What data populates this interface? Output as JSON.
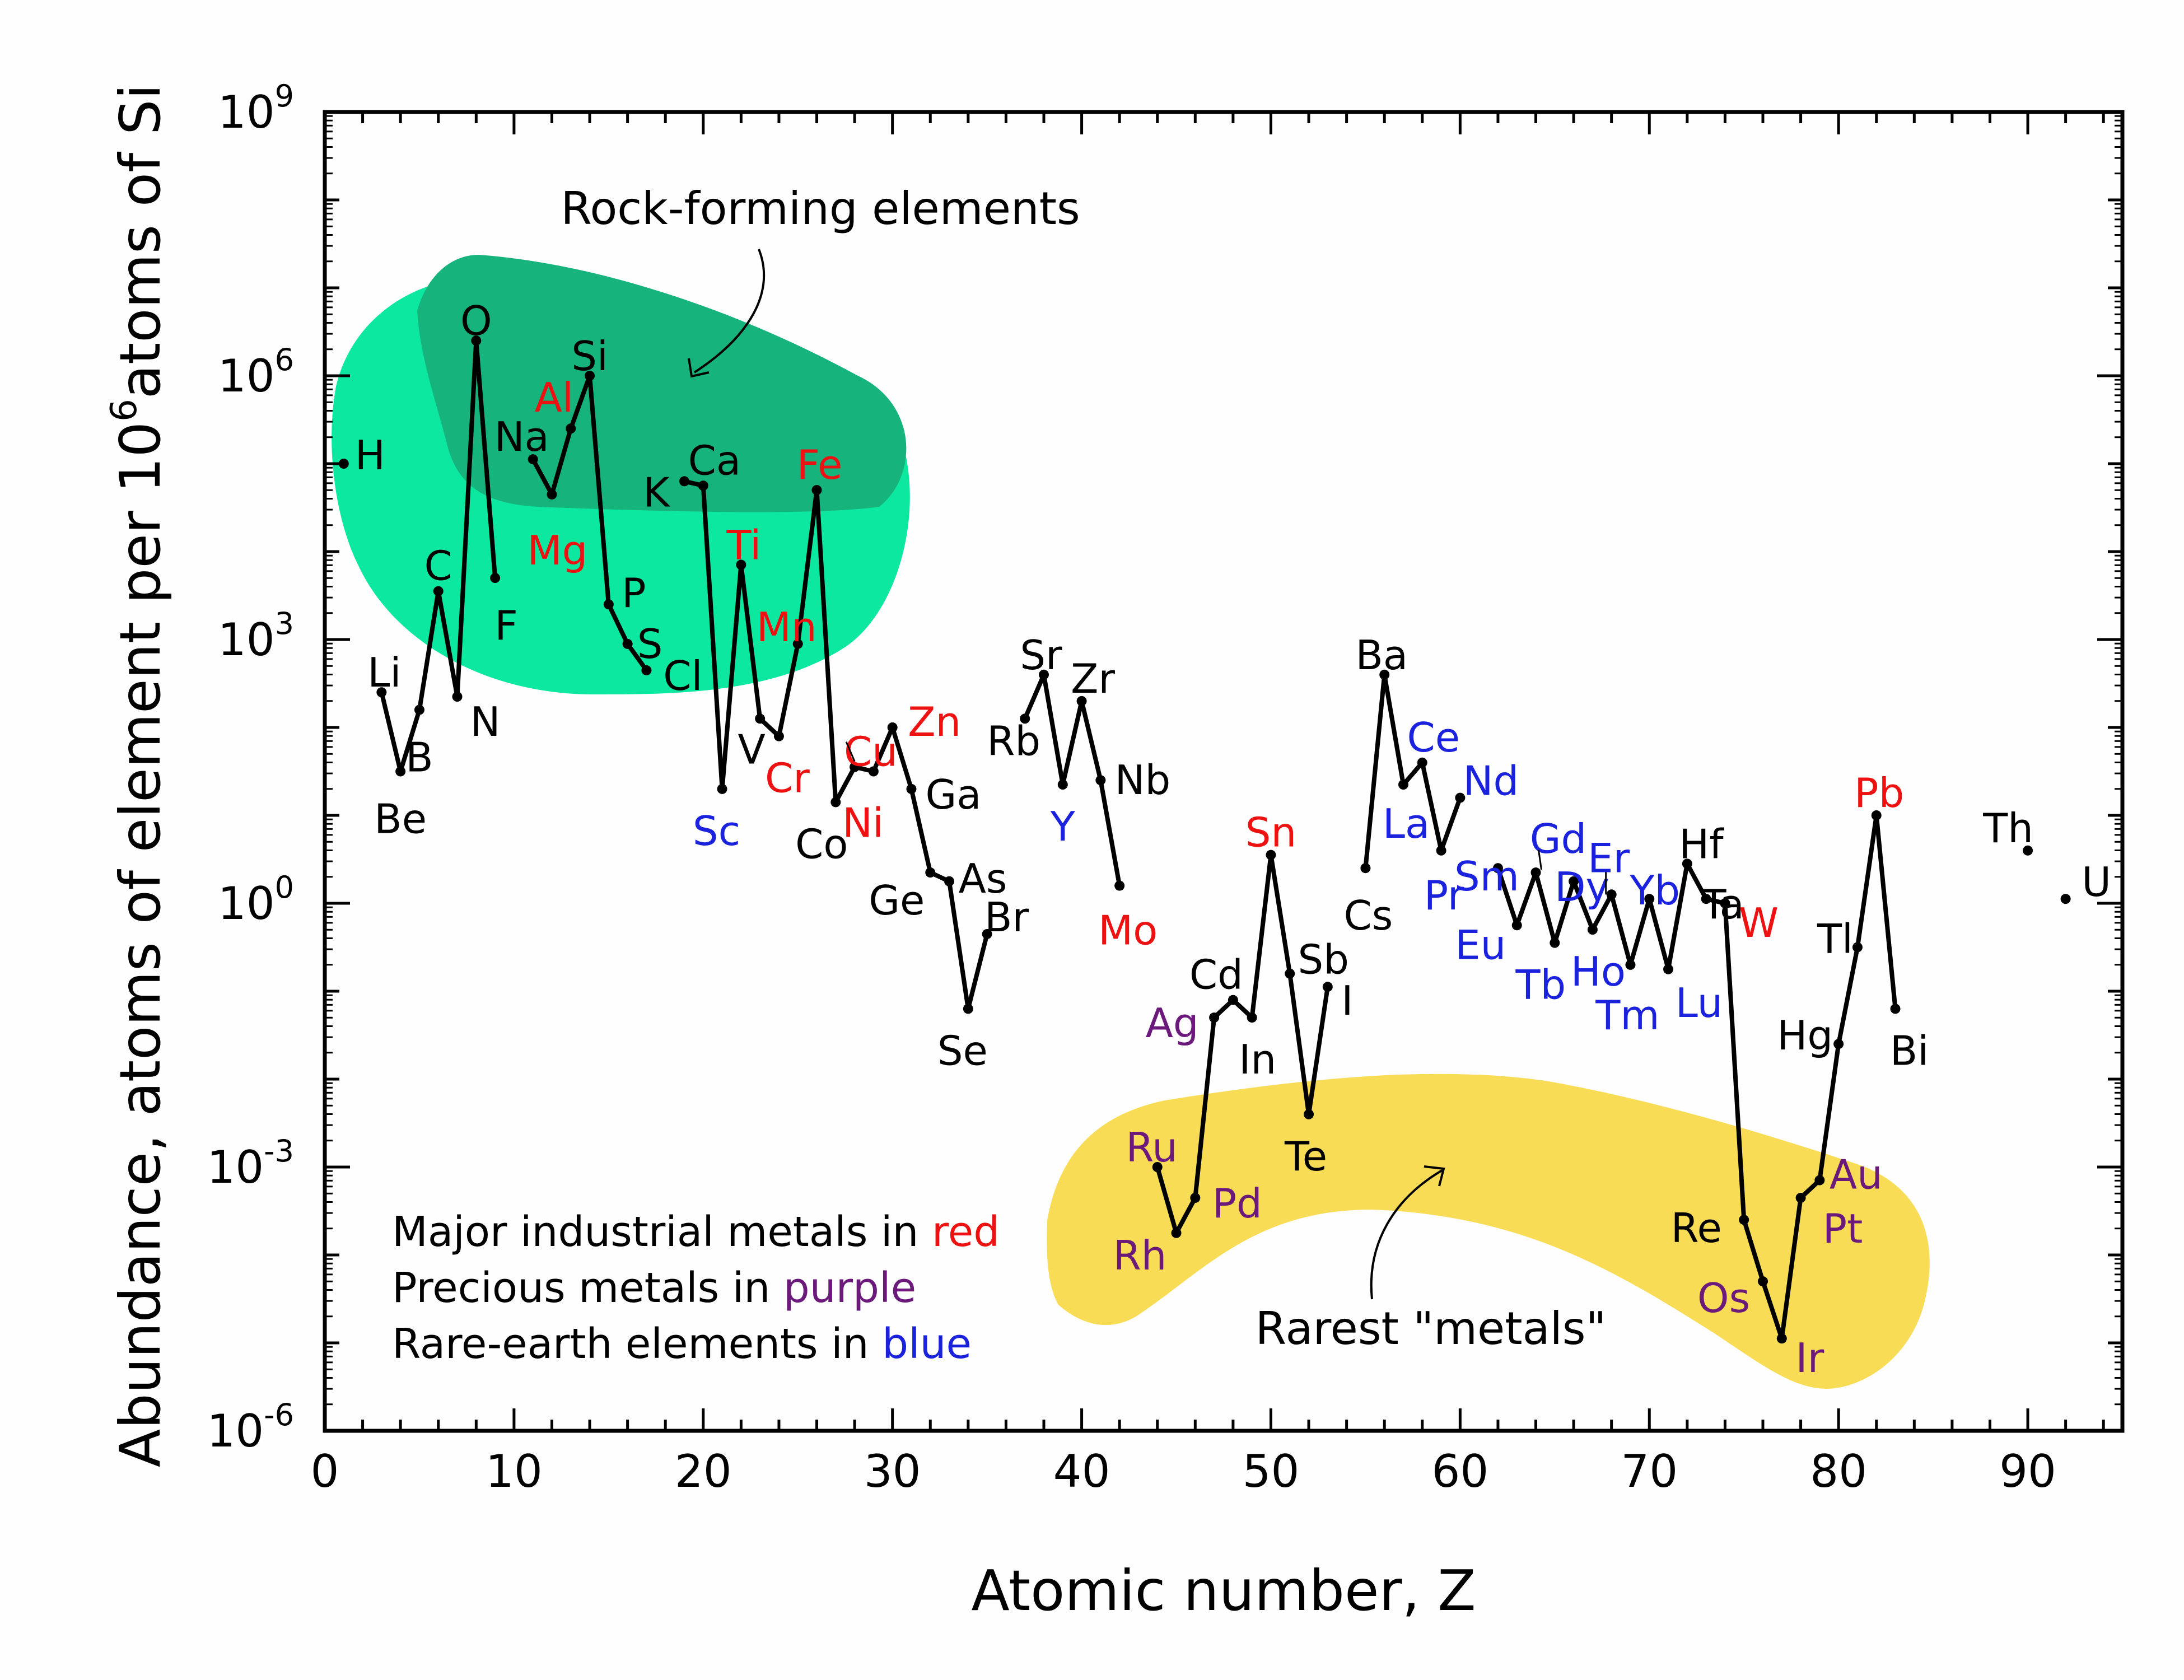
{
  "chart_data": {
    "type": "line",
    "title": "",
    "xlabel": "Atomic number, Z",
    "ylabel_parts": [
      "Abundance, atoms of element per 10",
      "6",
      "atoms of Si"
    ],
    "xlim": [
      0,
      95
    ],
    "ylim_log10": [
      -6,
      9
    ],
    "x_ticks": [
      0,
      10,
      20,
      30,
      40,
      50,
      60,
      70,
      80,
      90
    ],
    "y_ticks": [
      {
        "base": "10",
        "exp": "-6",
        "log": -6
      },
      {
        "base": "10",
        "exp": "-3",
        "log": -3
      },
      {
        "base": "10",
        "exp": "0",
        "log": 0
      },
      {
        "base": "10",
        "exp": "3",
        "log": 3
      },
      {
        "base": "10",
        "exp": "6",
        "log": 6
      },
      {
        "base": "10",
        "exp": "9",
        "log": 9
      }
    ],
    "colors": {
      "line": "#000000",
      "industrial": "#ee1111",
      "precious": "#6b1a7c",
      "rare_earth": "#1a22dd",
      "other": "#000000"
    },
    "points": [
      {
        "z": 1,
        "sym": "H",
        "log": 5.0,
        "cat": "other"
      },
      {
        "z": 3,
        "sym": "Li",
        "log": 2.4,
        "cat": "other"
      },
      {
        "z": 4,
        "sym": "Be",
        "log": 1.5,
        "cat": "other"
      },
      {
        "z": 5,
        "sym": "B",
        "log": 2.2,
        "cat": "other"
      },
      {
        "z": 6,
        "sym": "C",
        "log": 3.55,
        "cat": "other"
      },
      {
        "z": 7,
        "sym": "N",
        "log": 2.35,
        "cat": "other"
      },
      {
        "z": 8,
        "sym": "O",
        "log": 6.4,
        "cat": "other"
      },
      {
        "z": 9,
        "sym": "F",
        "log": 3.7,
        "cat": "other"
      },
      {
        "z": 11,
        "sym": "Na",
        "log": 5.05,
        "cat": "other"
      },
      {
        "z": 12,
        "sym": "Mg",
        "log": 4.65,
        "cat": "industrial"
      },
      {
        "z": 13,
        "sym": "Al",
        "log": 5.4,
        "cat": "industrial"
      },
      {
        "z": 14,
        "sym": "Si",
        "log": 6.0,
        "cat": "other"
      },
      {
        "z": 15,
        "sym": "P",
        "log": 3.4,
        "cat": "other"
      },
      {
        "z": 16,
        "sym": "S",
        "log": 2.95,
        "cat": "other"
      },
      {
        "z": 17,
        "sym": "Cl",
        "log": 2.65,
        "cat": "other"
      },
      {
        "z": 19,
        "sym": "K",
        "log": 4.8,
        "cat": "other"
      },
      {
        "z": 20,
        "sym": "Ca",
        "log": 4.75,
        "cat": "other"
      },
      {
        "z": 21,
        "sym": "Sc",
        "log": 1.3,
        "cat": "rare_earth"
      },
      {
        "z": 22,
        "sym": "Ti",
        "log": 3.85,
        "cat": "industrial"
      },
      {
        "z": 23,
        "sym": "V",
        "log": 2.1,
        "cat": "other"
      },
      {
        "z": 24,
        "sym": "Cr",
        "log": 1.9,
        "cat": "industrial"
      },
      {
        "z": 25,
        "sym": "Mn",
        "log": 2.95,
        "cat": "industrial"
      },
      {
        "z": 26,
        "sym": "Fe",
        "log": 4.7,
        "cat": "industrial"
      },
      {
        "z": 27,
        "sym": "Co",
        "log": 1.15,
        "cat": "other"
      },
      {
        "z": 28,
        "sym": "Ni",
        "log": 1.55,
        "cat": "industrial"
      },
      {
        "z": 29,
        "sym": "Cu",
        "log": 1.5,
        "cat": "industrial"
      },
      {
        "z": 30,
        "sym": "Zn",
        "log": 2.0,
        "cat": "industrial"
      },
      {
        "z": 31,
        "sym": "Ga",
        "log": 1.3,
        "cat": "other"
      },
      {
        "z": 32,
        "sym": "Ge",
        "log": 0.35,
        "cat": "other"
      },
      {
        "z": 33,
        "sym": "As",
        "log": 0.25,
        "cat": "other"
      },
      {
        "z": 34,
        "sym": "Se",
        "log": -1.2,
        "cat": "other"
      },
      {
        "z": 35,
        "sym": "Br",
        "log": -0.35,
        "cat": "other"
      },
      {
        "z": 37,
        "sym": "Rb",
        "log": 2.1,
        "cat": "other"
      },
      {
        "z": 38,
        "sym": "Sr",
        "log": 2.6,
        "cat": "other"
      },
      {
        "z": 39,
        "sym": "Y",
        "log": 1.35,
        "cat": "rare_earth"
      },
      {
        "z": 40,
        "sym": "Zr",
        "log": 2.3,
        "cat": "other"
      },
      {
        "z": 41,
        "sym": "Nb",
        "log": 1.4,
        "cat": "other"
      },
      {
        "z": 42,
        "sym": "Mo",
        "log": 0.2,
        "cat": "industrial"
      },
      {
        "z": 44,
        "sym": "Ru",
        "log": -3.0,
        "cat": "precious"
      },
      {
        "z": 45,
        "sym": "Rh",
        "log": -3.75,
        "cat": "precious"
      },
      {
        "z": 46,
        "sym": "Pd",
        "log": -3.35,
        "cat": "precious"
      },
      {
        "z": 47,
        "sym": "Ag",
        "log": -1.3,
        "cat": "precious"
      },
      {
        "z": 48,
        "sym": "Cd",
        "log": -1.1,
        "cat": "other"
      },
      {
        "z": 49,
        "sym": "In",
        "log": -1.3,
        "cat": "other"
      },
      {
        "z": 50,
        "sym": "Sn",
        "log": 0.55,
        "cat": "industrial"
      },
      {
        "z": 51,
        "sym": "Sb",
        "log": -0.8,
        "cat": "other"
      },
      {
        "z": 52,
        "sym": "Te",
        "log": -2.4,
        "cat": "other"
      },
      {
        "z": 53,
        "sym": "I",
        "log": -0.95,
        "cat": "other"
      },
      {
        "z": 55,
        "sym": "Cs",
        "log": 0.4,
        "cat": "other"
      },
      {
        "z": 56,
        "sym": "Ba",
        "log": 2.6,
        "cat": "other"
      },
      {
        "z": 57,
        "sym": "La",
        "log": 1.35,
        "cat": "rare_earth"
      },
      {
        "z": 58,
        "sym": "Ce",
        "log": 1.6,
        "cat": "rare_earth"
      },
      {
        "z": 59,
        "sym": "Pr",
        "log": 0.6,
        "cat": "rare_earth"
      },
      {
        "z": 60,
        "sym": "Nd",
        "log": 1.2,
        "cat": "rare_earth"
      },
      {
        "z": 62,
        "sym": "Sm",
        "log": 0.4,
        "cat": "rare_earth"
      },
      {
        "z": 63,
        "sym": "Eu",
        "log": -0.25,
        "cat": "rare_earth"
      },
      {
        "z": 64,
        "sym": "Gd",
        "log": 0.35,
        "cat": "rare_earth"
      },
      {
        "z": 65,
        "sym": "Tb",
        "log": -0.45,
        "cat": "rare_earth"
      },
      {
        "z": 66,
        "sym": "Dy",
        "log": 0.25,
        "cat": "rare_earth"
      },
      {
        "z": 67,
        "sym": "Ho",
        "log": -0.3,
        "cat": "rare_earth"
      },
      {
        "z": 68,
        "sym": "Er",
        "log": 0.1,
        "cat": "rare_earth"
      },
      {
        "z": 69,
        "sym": "Tm",
        "log": -0.7,
        "cat": "rare_earth"
      },
      {
        "z": 70,
        "sym": "Yb",
        "log": 0.05,
        "cat": "rare_earth"
      },
      {
        "z": 71,
        "sym": "Lu",
        "log": -0.75,
        "cat": "rare_earth"
      },
      {
        "z": 72,
        "sym": "Hf",
        "log": 0.45,
        "cat": "other"
      },
      {
        "z": 73,
        "sym": "Ta",
        "log": 0.05,
        "cat": "other"
      },
      {
        "z": 74,
        "sym": "W",
        "log": 0.0,
        "cat": "industrial"
      },
      {
        "z": 75,
        "sym": "Re",
        "log": -3.6,
        "cat": "other"
      },
      {
        "z": 76,
        "sym": "Os",
        "log": -4.3,
        "cat": "precious"
      },
      {
        "z": 77,
        "sym": "Ir",
        "log": -4.95,
        "cat": "precious"
      },
      {
        "z": 78,
        "sym": "Pt",
        "log": -3.35,
        "cat": "precious"
      },
      {
        "z": 79,
        "sym": "Au",
        "log": -3.15,
        "cat": "precious"
      },
      {
        "z": 80,
        "sym": "Hg",
        "log": -1.6,
        "cat": "other"
      },
      {
        "z": 81,
        "sym": "Tl",
        "log": -0.5,
        "cat": "other"
      },
      {
        "z": 82,
        "sym": "Pb",
        "log": 1.0,
        "cat": "industrial"
      },
      {
        "z": 83,
        "sym": "Bi",
        "log": -1.2,
        "cat": "other"
      },
      {
        "z": 90,
        "sym": "Th",
        "log": 0.6,
        "cat": "other"
      },
      {
        "z": 92,
        "sym": "U",
        "log": 0.05,
        "cat": "other"
      }
    ],
    "segments": [
      [
        1
      ],
      [
        3,
        4,
        5,
        6,
        7,
        8,
        9
      ],
      [
        11,
        12,
        13,
        14,
        15,
        16,
        17
      ],
      [
        19,
        20,
        21,
        22,
        23,
        24,
        25,
        26,
        27,
        28,
        29,
        30,
        31,
        32,
        33,
        34,
        35
      ],
      [
        37,
        38,
        39,
        40,
        41,
        42
      ],
      [
        44,
        45,
        46,
        47,
        48,
        49,
        50,
        51,
        52,
        53
      ],
      [
        55,
        56,
        57,
        58,
        59,
        60
      ],
      [
        62,
        63,
        64,
        65,
        66,
        67,
        68,
        69,
        70,
        71,
        72,
        73,
        74,
        75,
        76,
        77,
        78,
        79,
        80,
        81,
        82,
        83
      ],
      [
        90
      ],
      [
        92
      ]
    ],
    "regions": {
      "rock_forming": "Rock-forming elements",
      "rarest": "Rarest \"metals\""
    },
    "legend": [
      {
        "prefix": "Major industrial metals in ",
        "word": "red",
        "cat": "industrial"
      },
      {
        "prefix": "Precious metals in ",
        "word": "purple",
        "cat": "precious"
      },
      {
        "prefix": "Rare-earth elements in ",
        "word": "blue",
        "cat": "rare_earth"
      }
    ]
  }
}
